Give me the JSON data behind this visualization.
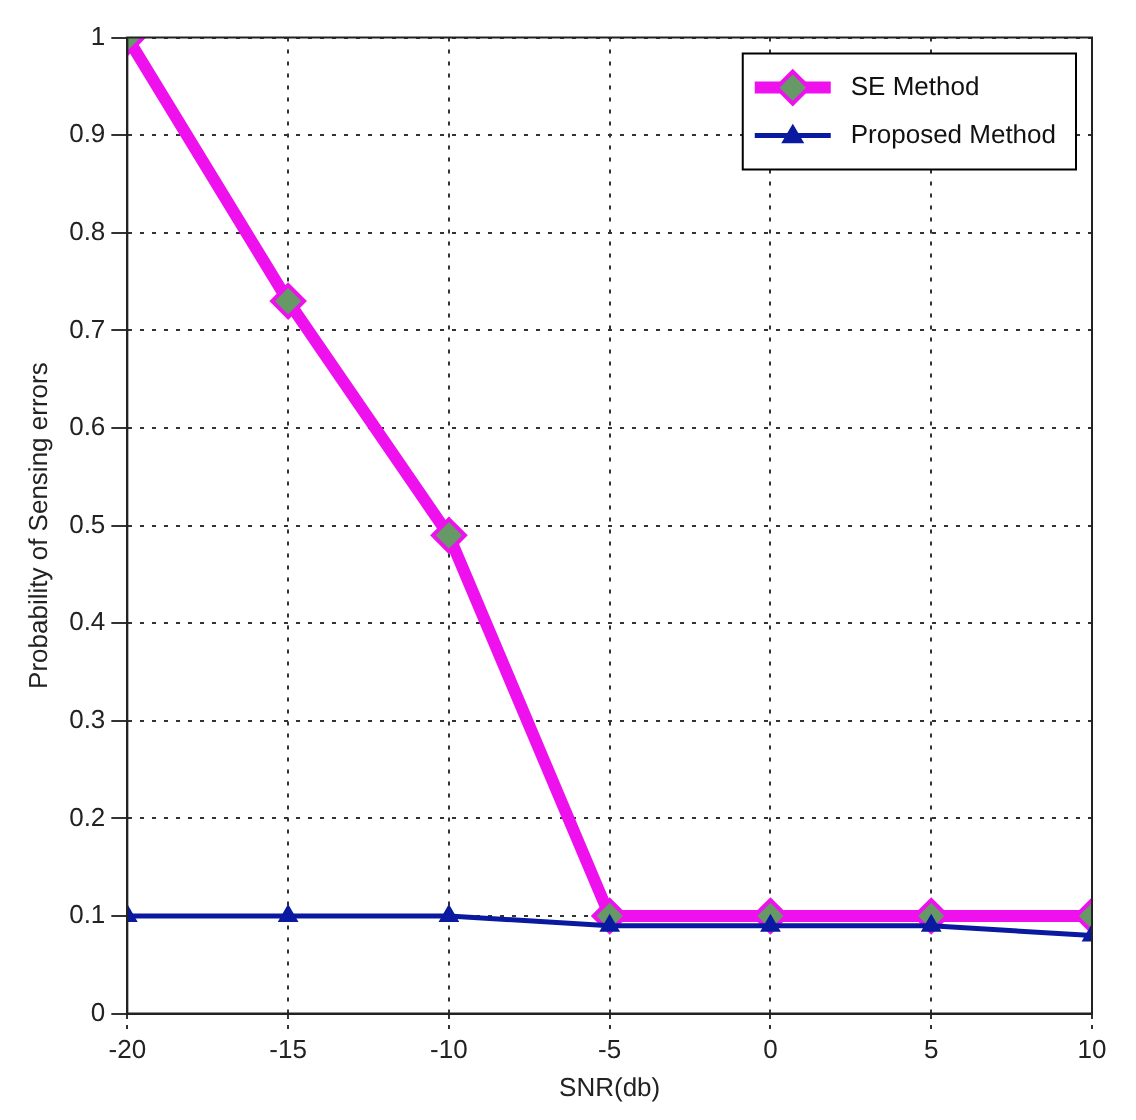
{
  "chart_data": {
    "type": "line",
    "xlabel": "SNR(db)",
    "ylabel": "Probability of Sensing errors",
    "x": [
      -20,
      -15,
      -10,
      -5,
      0,
      5,
      10
    ],
    "series": [
      {
        "name": "SE Method",
        "color": "#ee11ee",
        "marker": "diamond",
        "values": [
          1,
          0.73,
          0.49,
          0.1,
          0.1,
          0.1,
          0.1
        ]
      },
      {
        "name": "Proposed Method",
        "color": "#0a1aa0",
        "marker": "triangle",
        "values": [
          0.1,
          0.1,
          0.1,
          0.09,
          0.09,
          0.09,
          0.08
        ]
      }
    ],
    "xlim": [
      -20,
      10
    ],
    "xticks": [
      -20,
      -15,
      -10,
      -5,
      0,
      5,
      10
    ],
    "ylim": [
      0,
      1
    ],
    "yticks": [
      0,
      0.1,
      0.2,
      0.3,
      0.4,
      0.5,
      0.6,
      0.7,
      0.8,
      0.9,
      1
    ],
    "grid": true,
    "legend": "top right",
    "line_style": "solid"
  }
}
